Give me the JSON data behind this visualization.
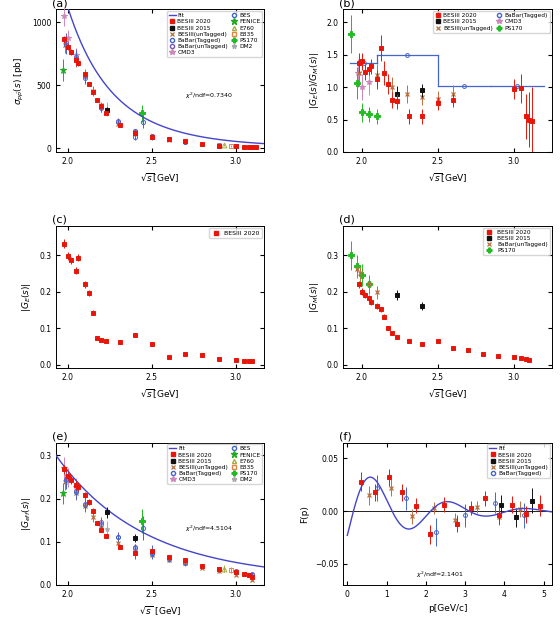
{
  "colors": {
    "besiii2020": "#e8160a",
    "besiii2015": "#111111",
    "besiii_untag": "#b87040",
    "babar_tag": "#4466cc",
    "babar_untag": "#7755bb",
    "cmd3": "#cc88bb",
    "bes": "#4466cc",
    "fenice": "#22aa22",
    "e760": "#aaaa44",
    "e835": "#dd8844",
    "ps170": "#22bb22",
    "dm2": "#aaaaaa",
    "fit": "#4444cc"
  },
  "panel_a": {
    "ylabel": "$\\sigma_{p\\bar{p}}(s)$ [pb]",
    "xlabel": "$\\sqrt{s}$[GeV]",
    "xlim": [
      1.93,
      3.17
    ],
    "ylim": [
      -30,
      1100
    ],
    "yticks": [
      0,
      500,
      1000
    ],
    "xticks": [
      2.0,
      2.5,
      3.0
    ],
    "chi2": "$\\chi^2$/ndf=0.7340"
  },
  "panel_b": {
    "ylabel": "$|G_E(s)/G_M(s)|$",
    "xlabel": "$\\sqrt{s}$[GeV]",
    "xlim": [
      1.88,
      3.25
    ],
    "ylim": [
      0,
      2.2
    ],
    "yticks": [
      0,
      0.5,
      1.0,
      1.5,
      2.0
    ],
    "xticks": [
      2.0,
      2.5,
      3.0
    ]
  },
  "panel_c": {
    "ylabel": "$|G_E(s)|$",
    "xlabel": "$\\sqrt{s}$[GeV]",
    "xlim": [
      1.93,
      3.17
    ],
    "ylim": [
      -0.01,
      0.38
    ],
    "yticks": [
      0,
      0.1,
      0.2,
      0.3
    ],
    "xticks": [
      2.0,
      2.5,
      3.0
    ]
  },
  "panel_d": {
    "ylabel": "$|G_M(s)|$",
    "xlabel": "$\\sqrt{s}$[GeV]",
    "xlim": [
      1.88,
      3.25
    ],
    "ylim": [
      -0.01,
      0.38
    ],
    "yticks": [
      0,
      0.1,
      0.2,
      0.3
    ],
    "xticks": [
      2.0,
      2.5,
      3.0
    ]
  },
  "panel_e": {
    "ylabel": "$|G_{eff}(s)|$",
    "xlabel": "$\\sqrt{s}$ [GeV]",
    "xlim": [
      1.93,
      3.17
    ],
    "ylim": [
      0,
      0.33
    ],
    "yticks": [
      0,
      0.1,
      0.2,
      0.3
    ],
    "xticks": [
      2.0,
      2.5,
      3.0
    ],
    "chi2": "$\\chi^2$/ndf=4.5104"
  },
  "panel_f": {
    "ylabel": "F(p)",
    "xlabel": "p[GeV/c]",
    "xlim": [
      -0.1,
      5.2
    ],
    "ylim": [
      -0.07,
      0.065
    ],
    "yticks": [
      -0.05,
      0,
      0.05
    ],
    "xticks": [
      0,
      1,
      2,
      3,
      4,
      5
    ],
    "chi2": "$\\chi^2$/ndf=2.1401"
  }
}
